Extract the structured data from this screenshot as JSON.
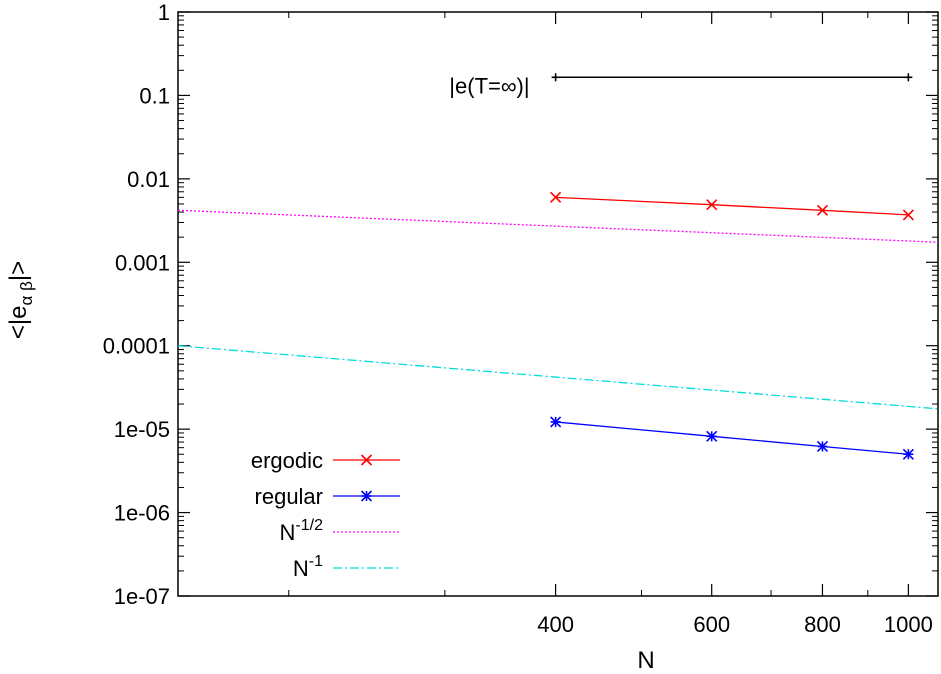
{
  "chart_data": {
    "type": "line",
    "xlabel": "N",
    "ylabel": {
      "prefix": "<|e",
      "sub": "α β",
      "suffix": "|>"
    },
    "x_scale": "log",
    "y_scale": "log",
    "xlim": [
      150,
      1080
    ],
    "ylim": [
      1e-07,
      1
    ],
    "x_ticks": [
      400,
      600,
      800,
      1000
    ],
    "y_ticks": [
      1,
      0.1,
      0.01,
      0.001,
      0.0001,
      1e-05,
      1e-06,
      1e-07
    ],
    "y_tick_labels": [
      "1",
      "0.1",
      "0.01",
      "0.001",
      "0.0001",
      "1e-05",
      "1e-06",
      "1e-07"
    ],
    "grid": false,
    "legend_position": "bottom-left",
    "reference_line": {
      "label": "|e(T=∞)|",
      "x": [
        400,
        1000
      ],
      "y": [
        0.165,
        0.165
      ],
      "color": "#000000"
    },
    "series": [
      {
        "name": "ergodic",
        "color": "#ff0000",
        "marker": "x",
        "x": [
          400,
          600,
          800,
          1000
        ],
        "y": [
          0.006,
          0.0049,
          0.0042,
          0.0037
        ]
      },
      {
        "name": "regular",
        "color": "#0000ff",
        "marker": "star",
        "x": [
          400,
          600,
          800,
          1000
        ],
        "y": [
          1.22e-05,
          8.2e-06,
          6.2e-06,
          5e-06
        ]
      },
      {
        "name": {
          "base": "N",
          "sup": "-1/2"
        },
        "color": "#ff00ff",
        "style": "dotted",
        "x": [
          150,
          1080
        ],
        "y": [
          0.0042,
          0.00174
        ]
      },
      {
        "name": {
          "base": "N",
          "sup": "-1"
        },
        "color": "#00dddd",
        "style": "dashdot",
        "x": [
          150,
          1080
        ],
        "y": [
          0.0001,
          1.75e-05
        ]
      }
    ]
  }
}
